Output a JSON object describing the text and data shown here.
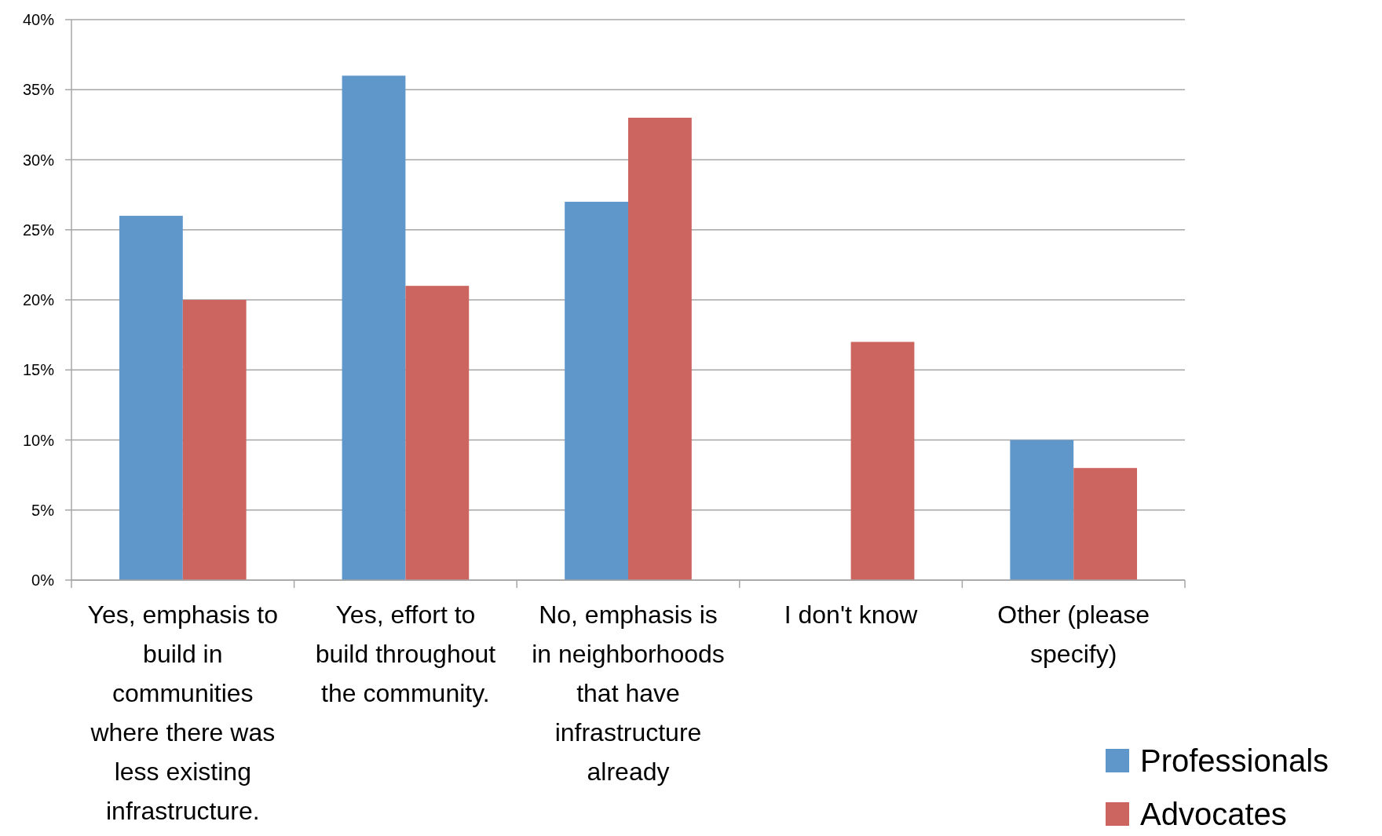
{
  "chart_data": {
    "type": "bar",
    "categories": [
      "Yes, emphasis to build in communities where there was less existing infrastructure.",
      "Yes, effort to build throughout the community.",
      "No, emphasis is in neighborhoods that have infrastructure already",
      "I don't know",
      "Other (please specify)"
    ],
    "series": [
      {
        "name": "Professionals",
        "color": "#6097cb",
        "values": [
          26,
          36,
          27,
          0,
          10
        ]
      },
      {
        "name": "Advocates",
        "color": "#cc6560",
        "values": [
          20,
          21,
          33,
          17,
          8
        ]
      }
    ],
    "ylim": [
      0,
      40
    ],
    "yticks": [
      {
        "value": 0,
        "label": "0%"
      },
      {
        "value": 5,
        "label": "5%"
      },
      {
        "value": 10,
        "label": "10%"
      },
      {
        "value": 15,
        "label": "15%"
      },
      {
        "value": 20,
        "label": "20%"
      },
      {
        "value": 25,
        "label": "25%"
      },
      {
        "value": 30,
        "label": "30%"
      },
      {
        "value": 35,
        "label": "35%"
      },
      {
        "value": 40,
        "label": "40%"
      }
    ],
    "grid": "y",
    "legend": "bottom right"
  }
}
